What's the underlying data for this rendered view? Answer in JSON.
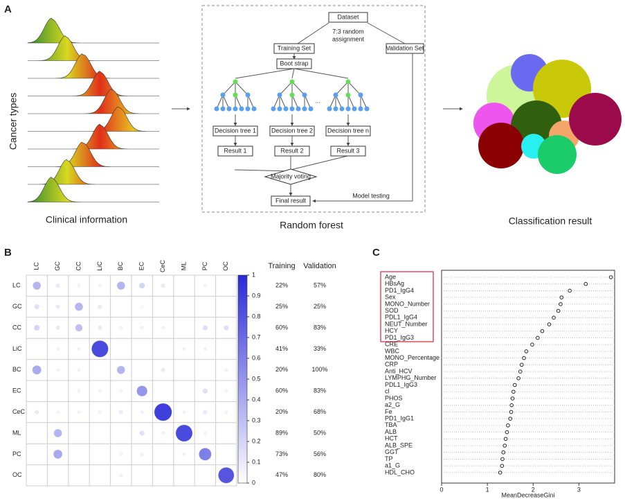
{
  "panel_a": {
    "label": "A",
    "y_axis_label": "Cancer types",
    "left_caption": "Clinical information",
    "middle_caption": "Random forest",
    "right_caption": "Classification result",
    "flowchart": {
      "dataset": "Dataset",
      "split": [
        "7:3 random",
        "assignment"
      ],
      "training_set": "Training Set",
      "validation_set": "Validation Set",
      "bootstrap": "Boot strap",
      "ellipsis": "...",
      "trees": [
        "Decision tree 1",
        "Decision tree 2",
        "Decision tree n"
      ],
      "results": [
        "Result 1",
        "Result 2",
        "Result 3"
      ],
      "voting": "Majority voting",
      "final": "Final result",
      "testing": "Model testing"
    }
  },
  "chart_data": [
    {
      "type": "corrplot",
      "label": "B",
      "rows": [
        "LC",
        "GC",
        "CC",
        "LiC",
        "BC",
        "EC",
        "CeC",
        "ML",
        "PC",
        "OC"
      ],
      "columns": [
        "LC",
        "GC",
        "CC",
        "LiC",
        "BC",
        "EC",
        "CeC",
        "ML",
        "PC",
        "OC"
      ],
      "values": [
        [
          0.35,
          0.1,
          0.05,
          0.05,
          0.35,
          0.2,
          0.1,
          0,
          0.05,
          0
        ],
        [
          0.15,
          0.1,
          0.35,
          0.1,
          0,
          0.03,
          0,
          0,
          0,
          0
        ],
        [
          0.2,
          0.1,
          0.3,
          0.1,
          0.05,
          0.05,
          0.05,
          0,
          0.15,
          0.15
        ],
        [
          0,
          0.05,
          0.05,
          0.85,
          0,
          0,
          0,
          0.05,
          0.05,
          0
        ],
        [
          0.4,
          0.05,
          0.05,
          0,
          0.35,
          0,
          0.1,
          0,
          0,
          0.05
        ],
        [
          0,
          0,
          0.05,
          0.05,
          0.05,
          0.5,
          0,
          0,
          0.15,
          0.05
        ],
        [
          0.1,
          0.05,
          0.05,
          0.05,
          0.1,
          0.05,
          0.9,
          0.05,
          0.1,
          0.05
        ],
        [
          0,
          0.35,
          0,
          0,
          0,
          0.15,
          0.05,
          0.85,
          0.05,
          0
        ],
        [
          0,
          0.4,
          0,
          0,
          0.05,
          0.05,
          0,
          0.05,
          0.6,
          0
        ],
        [
          0,
          0,
          0,
          0,
          0.05,
          0,
          0,
          0,
          0,
          0.8
        ]
      ],
      "color": "#2a2ad8",
      "clim": [
        0,
        1
      ],
      "cticks": [
        0,
        0.1,
        0.2,
        0.3,
        0.4,
        0.5,
        0.6,
        0.7,
        0.8,
        0.9,
        1
      ],
      "table": {
        "headers": [
          "Training",
          "Validation"
        ],
        "rows": [
          [
            "22%",
            "57%"
          ],
          [
            "25%",
            "25%"
          ],
          [
            "60%",
            "83%"
          ],
          [
            "41%",
            "33%"
          ],
          [
            "20%",
            "100%"
          ],
          [
            "60%",
            "83%"
          ],
          [
            "20%",
            "68%"
          ],
          [
            "89%",
            "50%"
          ],
          [
            "73%",
            "56%"
          ],
          [
            "47%",
            "80%"
          ]
        ]
      }
    },
    {
      "type": "dot",
      "label": "C",
      "categories": [
        "Age",
        "HBsAg",
        "PD1_IgG4",
        "Sex",
        "MONO_Number",
        "SOD",
        "PDL1_IgG4",
        "NEUT_Number",
        "HCY",
        "PD1_IgG3",
        "CRE",
        "WBC",
        "MONO_Percentage",
        "CRP",
        "Anti_HCV",
        "LYMPHG_Number",
        "PDL1_IgG3",
        "cl",
        "PHOS",
        "a2_G",
        "Fe",
        "PD1_IgG1",
        "TBA",
        "ALB",
        "HCT",
        "ALB_SPE",
        "GGT",
        "TP",
        "a1_G",
        "HDL_CHO"
      ],
      "values": [
        3.7,
        3.15,
        2.8,
        2.62,
        2.6,
        2.55,
        2.45,
        2.35,
        2.2,
        2.1,
        1.98,
        1.85,
        1.8,
        1.75,
        1.72,
        1.68,
        1.6,
        1.57,
        1.55,
        1.53,
        1.52,
        1.5,
        1.45,
        1.43,
        1.4,
        1.38,
        1.35,
        1.33,
        1.32,
        1.28
      ],
      "xlim": [
        0,
        3.78
      ],
      "xticks": [
        0,
        1,
        2,
        3
      ],
      "xlabel": "MeanDecreaseGini"
    }
  ]
}
